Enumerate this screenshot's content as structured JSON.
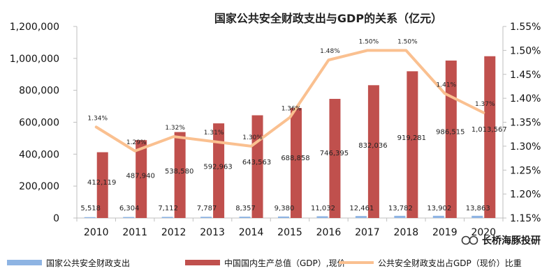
{
  "chart_data": {
    "type": "bar+line",
    "title": "国家公共安全财政支出与GDP的关系（亿元）",
    "categories": [
      "2010",
      "2011",
      "2012",
      "2013",
      "2014",
      "2015",
      "2016",
      "2017",
      "2018",
      "2019",
      "2020"
    ],
    "series": [
      {
        "name": "国家公共安全财政支出",
        "kind": "bar",
        "axis": "left",
        "color": "#8eb4e3",
        "values": [
          5518,
          6304,
          7112,
          7787,
          8357,
          9380,
          11032,
          12461,
          13782,
          13902,
          13863
        ],
        "labels": [
          "5,518",
          "6,304",
          "7,112",
          "7,787",
          "8,357",
          "9,380",
          "11,032",
          "12,461",
          "13,782",
          "13,902",
          "13,863"
        ]
      },
      {
        "name": "中国国内生产总值（GDP）,现价",
        "kind": "bar",
        "axis": "left",
        "color": "#c0504d",
        "values": [
          412119,
          487940,
          538580,
          592963,
          643563,
          688858,
          746395,
          832036,
          919281,
          986515,
          1013567
        ],
        "labels": [
          "412,119",
          "487,940",
          "538,580",
          "592,963",
          "643,563",
          "688,858",
          "746,395",
          "832,036",
          "919,281",
          "986,515",
          "1,013,567"
        ]
      },
      {
        "name": "公共安全财政支出占GDP（现价）比重",
        "kind": "line",
        "axis": "right",
        "color": "#fac090",
        "values": [
          1.34,
          1.29,
          1.32,
          1.31,
          1.3,
          1.36,
          1.48,
          1.5,
          1.5,
          1.41,
          1.37
        ],
        "labels": [
          "1.34%",
          "1.29%",
          "1.32%",
          "1.31%",
          "1.30%",
          "1.36%",
          "1.48%",
          "1.50%",
          "1.50%",
          "1.41%",
          "1.37%"
        ]
      }
    ],
    "left_axis": {
      "ylim": [
        0,
        1200000
      ],
      "ticks": [
        0,
        200000,
        400000,
        600000,
        800000,
        1000000,
        1200000
      ],
      "tick_labels": [
        "0",
        "200,000",
        "400,000",
        "600,000",
        "800,000",
        "1,000,000",
        "1,200,000"
      ]
    },
    "right_axis": {
      "ylim": [
        1.15,
        1.55
      ],
      "ticks": [
        1.15,
        1.2,
        1.25,
        1.3,
        1.35,
        1.4,
        1.45,
        1.5,
        1.55
      ],
      "tick_labels": [
        "1.15%",
        "1.20%",
        "1.25%",
        "1.30%",
        "1.35%",
        "1.40%",
        "1.45%",
        "1.50%",
        "1.55%"
      ]
    },
    "grid": false,
    "legend_position": "bottom"
  },
  "watermark": {
    "text": "长桥海豚投研",
    "icon": "wechat-channel-icon"
  },
  "colors": {
    "axis": "#bfbfbf",
    "watermark_icon": "#3a3a3a"
  }
}
